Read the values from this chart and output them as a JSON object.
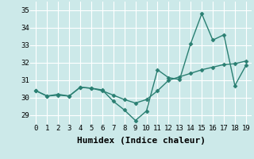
{
  "line1_x": [
    0,
    1,
    2,
    3,
    4,
    5,
    6,
    7,
    8,
    9,
    10,
    11,
    12,
    13,
    14,
    15,
    16,
    17,
    18,
    19
  ],
  "line1_y": [
    30.4,
    30.1,
    30.2,
    30.1,
    30.6,
    30.55,
    30.45,
    29.8,
    29.3,
    28.7,
    29.25,
    31.6,
    31.15,
    31.05,
    33.1,
    34.8,
    33.3,
    33.6,
    30.7,
    31.85
  ],
  "line2_x": [
    0,
    1,
    2,
    3,
    4,
    5,
    6,
    7,
    8,
    9,
    10,
    11,
    12,
    13,
    14,
    15,
    16,
    17,
    18,
    19
  ],
  "line2_y": [
    30.4,
    30.1,
    30.15,
    30.1,
    30.6,
    30.55,
    30.4,
    30.15,
    29.9,
    29.7,
    29.9,
    30.4,
    31.0,
    31.2,
    31.4,
    31.6,
    31.75,
    31.9,
    31.95,
    32.1
  ],
  "line_color": "#2a7f72",
  "bg_color": "#cce9e9",
  "grid_color": "#b8d8d8",
  "xlabel": "Humidex (Indice chaleur)",
  "ylim": [
    28.5,
    35.5
  ],
  "yticks": [
    29,
    30,
    31,
    32,
    33,
    34,
    35
  ],
  "xlim": [
    -0.5,
    19.5
  ],
  "xticks": [
    0,
    1,
    2,
    3,
    4,
    5,
    6,
    7,
    8,
    9,
    10,
    11,
    12,
    13,
    14,
    15,
    16,
    17,
    18,
    19
  ],
  "marker": "D",
  "markersize": 2.5,
  "linewidth": 1.0,
  "xlabel_fontsize": 8,
  "tick_fontsize": 6.5
}
